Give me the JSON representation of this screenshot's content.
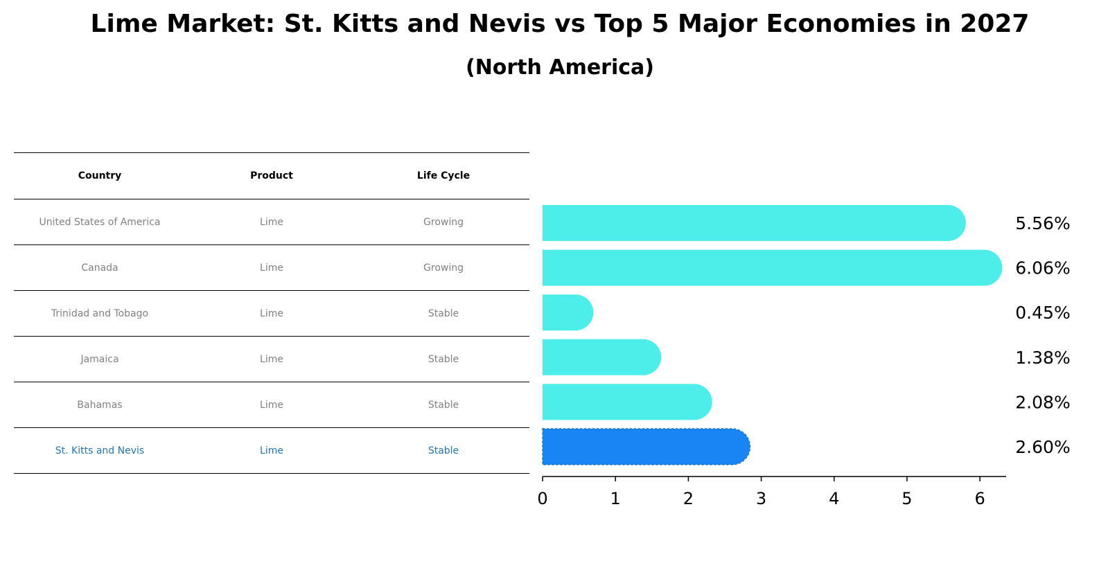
{
  "title": "Lime Market: St. Kitts and Nevis vs Top 5 Major Economies in 2027",
  "subtitle": "(North America)",
  "table": {
    "headers": [
      "Country",
      "Product",
      "Life Cycle"
    ],
    "rows": [
      {
        "country": "United States of America",
        "product": "Lime",
        "life_cycle": "Growing"
      },
      {
        "country": "Canada",
        "product": "Lime",
        "life_cycle": "Growing"
      },
      {
        "country": "Trinidad and Tobago",
        "product": "Lime",
        "life_cycle": "Stable"
      },
      {
        "country": "Jamaica",
        "product": "Lime",
        "life_cycle": "Stable"
      },
      {
        "country": "Bahamas",
        "product": "Lime",
        "life_cycle": "Stable"
      },
      {
        "country": "St. Kitts and Nevis",
        "product": "Lime",
        "life_cycle": "Stable"
      }
    ]
  },
  "chart_data": {
    "type": "bar",
    "orientation": "horizontal",
    "categories": [
      "United States of America",
      "Canada",
      "Trinidad and Tobago",
      "Jamaica",
      "Bahamas",
      "St. Kitts and Nevis"
    ],
    "values": [
      5.56,
      6.06,
      0.45,
      1.38,
      2.08,
      2.6
    ],
    "labels": [
      "5.56%",
      "6.06%",
      "0.45%",
      "1.38%",
      "2.08%",
      "2.60%"
    ],
    "highlight": "St. Kitts and Nevis",
    "xlim": [
      0,
      6.36
    ],
    "xticks": [
      0,
      1,
      2,
      3,
      4,
      5,
      6
    ],
    "title": "Lime Market: St. Kitts and Nevis vs Top 5 Major Economies in 2027",
    "xlabel": "",
    "ylabel": ""
  },
  "colors": {
    "bar": "#4deee9",
    "highlight_bar": "#1985f5",
    "highlight_text": "#1f77b4",
    "muted_text": "#808080"
  }
}
